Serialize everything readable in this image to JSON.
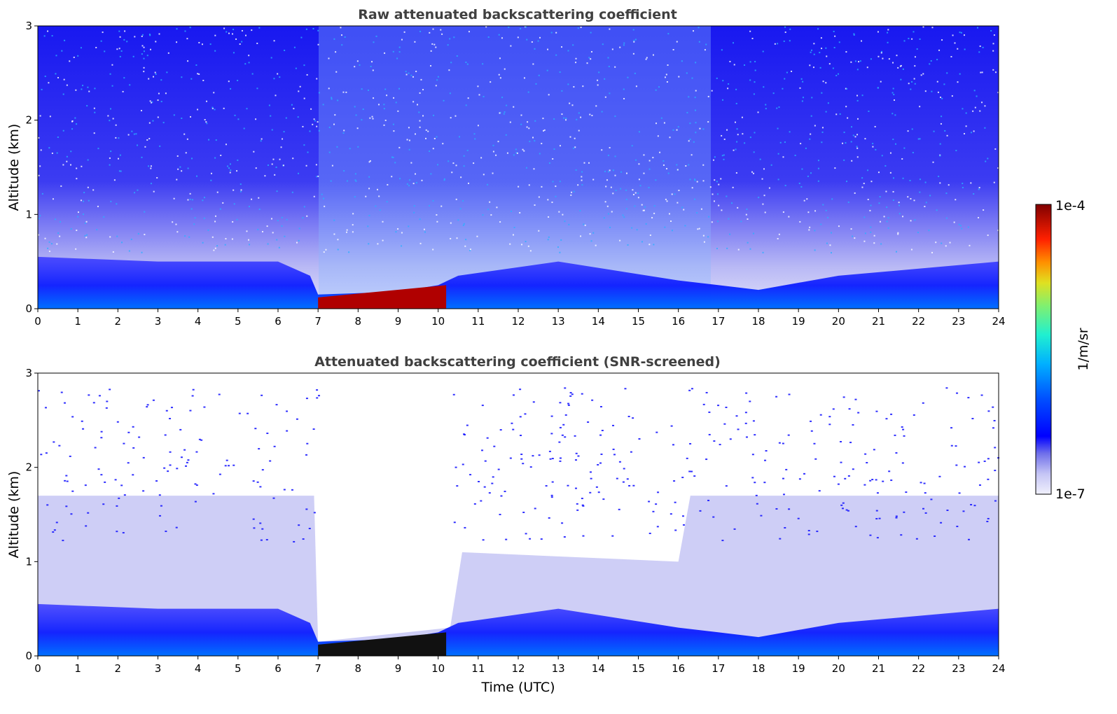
{
  "chart_data": [
    {
      "type": "heatmap",
      "title": "Raw attenuated backscattering coefficient",
      "xlabel": "",
      "ylabel": "Altitude (km)",
      "xlim": [
        0,
        24
      ],
      "ylim": [
        0,
        3
      ],
      "xticks": [
        "0",
        "1",
        "2",
        "3",
        "4",
        "5",
        "6",
        "7",
        "8",
        "9",
        "10",
        "11",
        "12",
        "13",
        "14",
        "15",
        "16",
        "17",
        "18",
        "19",
        "20",
        "21",
        "22",
        "23",
        "24"
      ],
      "yticks": [
        "0",
        "1",
        "2",
        "3"
      ],
      "features": {
        "boundary_layer_top_km": [
          [
            0,
            0.55
          ],
          [
            3,
            0.5
          ],
          [
            6,
            0.5
          ],
          [
            6.8,
            0.35
          ],
          [
            7,
            0.15
          ],
          [
            9,
            0.18
          ],
          [
            10,
            0.25
          ],
          [
            10.5,
            0.35
          ],
          [
            13,
            0.5
          ],
          [
            16,
            0.3
          ],
          [
            18,
            0.2
          ],
          [
            20,
            0.35
          ],
          [
            24,
            0.5
          ]
        ],
        "high_signal_layer": {
          "x_range": [
            7,
            10.2
          ],
          "top_km_start": 0.12,
          "top_km_end": 0.25
        },
        "noisy_daytime_region": [
          7,
          16
        ]
      }
    },
    {
      "type": "heatmap",
      "title": "Attenuated backscattering coefficient (SNR-screened)",
      "xlabel": "Time (UTC)",
      "ylabel": "Altitude (km)",
      "xlim": [
        0,
        24
      ],
      "ylim": [
        0,
        3
      ],
      "xticks": [
        "0",
        "1",
        "2",
        "3",
        "4",
        "5",
        "6",
        "7",
        "8",
        "9",
        "10",
        "11",
        "12",
        "13",
        "14",
        "15",
        "16",
        "17",
        "18",
        "19",
        "20",
        "21",
        "22",
        "23",
        "24"
      ],
      "yticks": [
        "0",
        "1",
        "2",
        "3"
      ],
      "features": {
        "screened_out_region": [
          7,
          10.3
        ],
        "high_signal_layer": {
          "x_range": [
            7,
            10.2
          ],
          "top_km_start": 0.12,
          "top_km_end": 0.25
        }
      }
    }
  ],
  "colorbar": {
    "max_label": "1e-4",
    "min_label": "1e-7",
    "unit_label": "1/m/sr",
    "colors": [
      "#e8e8fa",
      "#c5c5f5",
      "#9a9aee",
      "#5f5fe8",
      "#0000ff",
      "#0040ff",
      "#0090ff",
      "#00d0f0",
      "#30f0c0",
      "#80f080",
      "#d0f040",
      "#ffd000",
      "#ff8000",
      "#ff2000",
      "#c00000",
      "#800000"
    ]
  }
}
